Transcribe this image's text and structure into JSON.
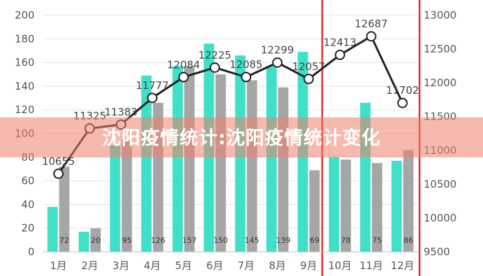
{
  "chart_data": {
    "type": "bar",
    "categories": [
      "1月",
      "2月",
      "3月",
      "4月",
      "5月",
      "6月",
      "7月",
      "8月",
      "9月",
      "10月",
      "11月",
      "12月"
    ],
    "series": [
      {
        "values": [
          38,
          17,
          90,
          149,
          157,
          176,
          166,
          157,
          169,
          80,
          126,
          77
        ],
        "color": "#40e0c8",
        "axis": "left",
        "type": "bar"
      },
      {
        "values": [
          72,
          20,
          95,
          126,
          157,
          150,
          145,
          139,
          69,
          78,
          75,
          86
        ],
        "color": "#a6a6a6",
        "axis": "left",
        "type": "bar"
      },
      {
        "values": [
          10655,
          11325,
          11383,
          11777,
          12084,
          12225,
          12085,
          12299,
          12057,
          12413,
          12687,
          11702
        ],
        "color": "#222222",
        "axis": "right",
        "type": "line"
      }
    ],
    "ylim_left": [
      0,
      200
    ],
    "yticks_left": [
      "0",
      "20",
      "40",
      "60",
      "80",
      "100",
      "120",
      "140",
      "160",
      "180",
      "200"
    ],
    "ylim_right": [
      9500,
      13000
    ],
    "yticks_right": [
      "9500",
      "10000",
      "10500",
      "11000",
      "11500",
      "12000",
      "12500",
      "13000"
    ],
    "highlight_range": [
      "10月",
      "12月"
    ],
    "highlight_color": "#d93025",
    "grid": true
  },
  "banner": {
    "text": "沈阳疫情统计:沈阳疫情统计变化"
  }
}
